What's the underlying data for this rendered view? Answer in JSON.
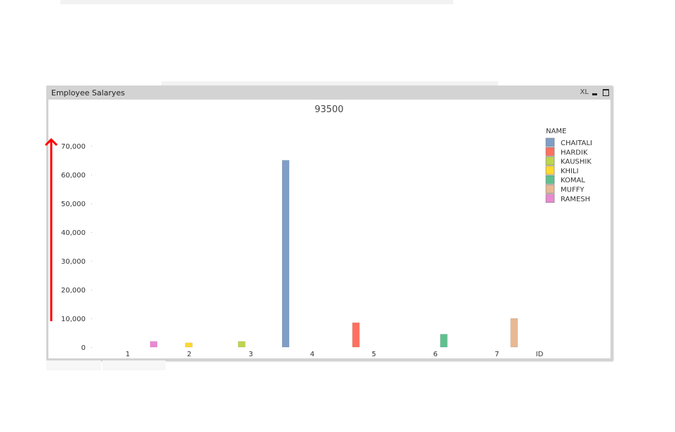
{
  "window": {
    "title": "Employee Salaryes",
    "xl_label": "XL"
  },
  "chart_data": {
    "type": "bar",
    "title": "93500",
    "xlabel": "ID",
    "ylabel": "",
    "categories": [
      "1",
      "2",
      "3",
      "4",
      "5",
      "6",
      "7"
    ],
    "ylim": [
      0,
      70000
    ],
    "yticks": [
      "0",
      "10,000",
      "20,000",
      "30,000",
      "40,000",
      "50,000",
      "60,000",
      "70,000"
    ],
    "legend_title": "NAME",
    "legend_placement": "top-right",
    "grid": false,
    "series": [
      {
        "name": "CHAITALI",
        "color": "#7f9ec6",
        "values": [
          null,
          null,
          null,
          65000,
          null,
          null,
          null
        ]
      },
      {
        "name": "HARDIK",
        "color": "#ff7060",
        "values": [
          null,
          null,
          null,
          null,
          8500,
          null,
          null
        ]
      },
      {
        "name": "KAUSHIK",
        "color": "#bcd54e",
        "values": [
          null,
          null,
          2000,
          null,
          null,
          null,
          null
        ]
      },
      {
        "name": "KHILI",
        "color": "#ffd92e",
        "values": [
          null,
          1500,
          null,
          null,
          null,
          null,
          null
        ]
      },
      {
        "name": "KOMAL",
        "color": "#5fc08f",
        "values": [
          null,
          null,
          null,
          null,
          null,
          4500,
          null
        ]
      },
      {
        "name": "MUFFY",
        "color": "#e8b894",
        "values": [
          null,
          null,
          null,
          null,
          null,
          null,
          10000
        ]
      },
      {
        "name": "RAMESH",
        "color": "#e98ad0",
        "values": [
          2000,
          null,
          null,
          null,
          null,
          null,
          null
        ]
      }
    ],
    "annotation": {
      "type": "arrow",
      "color": "#ff0000",
      "direction": "up"
    }
  }
}
